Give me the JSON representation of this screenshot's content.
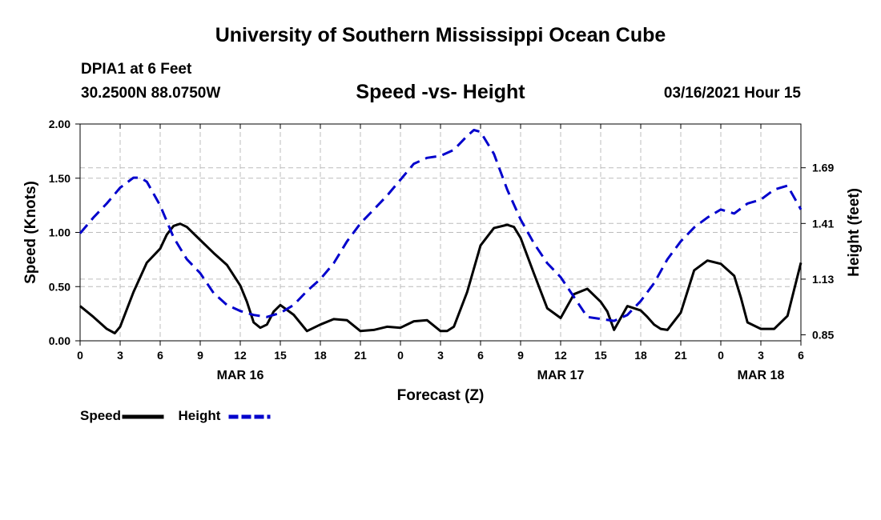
{
  "header": {
    "title_top": "University of Southern Mississippi Ocean Cube",
    "station": "DPIA1 at 6 Feet",
    "coords": "30.2500N 88.0750W",
    "subtitle": "Speed -vs- Height",
    "datetime": "03/16/2021 Hour 15",
    "title_bottom": "University of Southern Mississippi Ocean Cube"
  },
  "chart_data": {
    "type": "line",
    "xlabel": "Forecast (Z)",
    "ylabel_left": "Speed (Knots)",
    "ylabel_right": "Height (feet)",
    "xlim": [
      0,
      54
    ],
    "ylim_left": [
      0,
      2.0
    ],
    "ylim_right": [
      0.82,
      1.91
    ],
    "grid": true,
    "x_tick_values": [
      0,
      3,
      6,
      9,
      12,
      15,
      18,
      21,
      24,
      27,
      30,
      33,
      36,
      39,
      42,
      45,
      48,
      51,
      54
    ],
    "x_tick_labels": [
      "0",
      "3",
      "6",
      "9",
      "12",
      "15",
      "18",
      "21",
      "0",
      "3",
      "6",
      "9",
      "12",
      "15",
      "18",
      "21",
      "0",
      "3",
      "6"
    ],
    "day_labels": [
      {
        "x": 12,
        "label": "MAR 16"
      },
      {
        "x": 36,
        "label": "MAR 17"
      },
      {
        "x": 51,
        "label": "MAR 18"
      }
    ],
    "y_left_ticks": [
      0,
      0.5,
      1.0,
      1.5,
      2.0
    ],
    "y_left_tick_labels": [
      "0.00",
      "0.50",
      "1.00",
      "1.50",
      "2.00"
    ],
    "y_right_ticks": [
      0.85,
      1.13,
      1.41,
      1.69
    ],
    "y_right_tick_labels": [
      "0.85",
      "1.13",
      "1.41",
      "1.69"
    ],
    "legend": [
      {
        "name": "Speed",
        "color": "#000000",
        "style": "solid"
      },
      {
        "name": "Height",
        "color": "#0000cc",
        "style": "dashed"
      }
    ],
    "series": [
      {
        "name": "Speed",
        "axis": "left",
        "color": "#000000",
        "style": "solid",
        "x": [
          0,
          1,
          2,
          2.6,
          3,
          4,
          5,
          6,
          6.5,
          7,
          7.5,
          8,
          9,
          10,
          11,
          12,
          12.5,
          13,
          13.5,
          14,
          14.5,
          15,
          16,
          17,
          18,
          19,
          20,
          21,
          22,
          23,
          24,
          25,
          26,
          27,
          27.5,
          28,
          29,
          30,
          31,
          32,
          32.5,
          33,
          34,
          35,
          36,
          37,
          38,
          39,
          39.5,
          40,
          41,
          42,
          42.5,
          43,
          43.5,
          44,
          45,
          46,
          47,
          48,
          49,
          49.5,
          50,
          51,
          52,
          53,
          54
        ],
        "values": [
          0.32,
          0.22,
          0.11,
          0.07,
          0.13,
          0.45,
          0.72,
          0.85,
          0.98,
          1.06,
          1.08,
          1.05,
          0.93,
          0.81,
          0.7,
          0.51,
          0.36,
          0.17,
          0.12,
          0.15,
          0.27,
          0.33,
          0.24,
          0.09,
          0.15,
          0.2,
          0.19,
          0.09,
          0.1,
          0.13,
          0.12,
          0.18,
          0.19,
          0.09,
          0.09,
          0.13,
          0.45,
          0.88,
          1.04,
          1.07,
          1.05,
          0.95,
          0.62,
          0.3,
          0.21,
          0.43,
          0.48,
          0.36,
          0.27,
          0.1,
          0.32,
          0.28,
          0.22,
          0.15,
          0.11,
          0.1,
          0.26,
          0.65,
          0.74,
          0.71,
          0.6,
          0.4,
          0.17,
          0.11,
          0.11,
          0.23,
          0.72
        ]
      },
      {
        "name": "Height",
        "axis": "right",
        "color": "#0000cc",
        "style": "dashed",
        "x": [
          0,
          1,
          2,
          3,
          4,
          4.5,
          5,
          6,
          7,
          8,
          9,
          10,
          11,
          12,
          13,
          14,
          15,
          16,
          17,
          18,
          19,
          20,
          21,
          22,
          23,
          24,
          25,
          26,
          27,
          28,
          29,
          29.5,
          30,
          31,
          32,
          33,
          34,
          35,
          36,
          37,
          38,
          39,
          40,
          41,
          42,
          43,
          44,
          45,
          46,
          47,
          48,
          49,
          50,
          51,
          52,
          53,
          54
        ],
        "values": [
          1.36,
          1.44,
          1.51,
          1.59,
          1.64,
          1.64,
          1.62,
          1.5,
          1.34,
          1.23,
          1.16,
          1.06,
          1.0,
          0.97,
          0.95,
          0.94,
          0.96,
          1.0,
          1.07,
          1.13,
          1.21,
          1.32,
          1.41,
          1.48,
          1.55,
          1.63,
          1.71,
          1.74,
          1.75,
          1.78,
          1.85,
          1.88,
          1.87,
          1.76,
          1.58,
          1.43,
          1.31,
          1.21,
          1.14,
          1.04,
          0.94,
          0.93,
          0.92,
          0.95,
          1.02,
          1.11,
          1.23,
          1.32,
          1.39,
          1.44,
          1.48,
          1.46,
          1.51,
          1.53,
          1.58,
          1.6,
          1.48
        ]
      }
    ]
  }
}
